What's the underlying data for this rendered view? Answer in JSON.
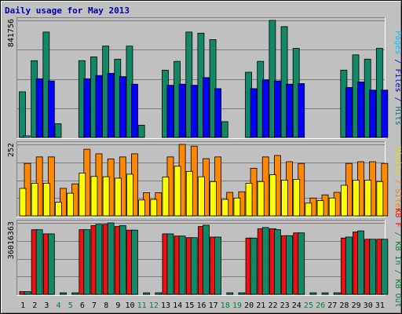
{
  "chart_data": {
    "type": "bar",
    "title": "Daily usage for May 2013",
    "x": [
      "1",
      "2",
      "3",
      "4",
      "5",
      "6",
      "7",
      "8",
      "9",
      "10",
      "11",
      "12",
      "13",
      "14",
      "15",
      "16",
      "17",
      "18",
      "19",
      "20",
      "21",
      "22",
      "23",
      "24",
      "25",
      "26",
      "27",
      "28",
      "29",
      "30",
      "31"
    ],
    "weekend_days": [
      "4",
      "5",
      "11",
      "12",
      "18",
      "19",
      "25",
      "26"
    ],
    "panels": [
      {
        "id": "top",
        "max_label": "841756",
        "right_label_parts": [
          {
            "text": "Pages",
            "color": "#00c0ff"
          },
          {
            "text": " / ",
            "color": "#0000c0"
          },
          {
            "text": "Files",
            "color": "#0000c0"
          },
          {
            "text": " / ",
            "color": "#0000c0"
          },
          {
            "text": "Hits",
            "color": "#008080"
          }
        ],
        "ylim": [
          0,
          841756
        ],
        "series": [
          {
            "name": "Hits",
            "color": "#118866",
            "values": [
              328000,
              552000,
              758000,
              98000,
              0,
              552000,
              579000,
              657000,
              563000,
              657000,
              88000,
              0,
              484000,
              547000,
              758000,
              750000,
              704000,
              113000,
              0,
              469000,
              547000,
              841756,
              797000,
              641000,
              0,
              0,
              0,
              484000,
              594000,
              563000,
              641000
            ]
          },
          {
            "name": "Files",
            "color": "#0000ff",
            "values": [
              0,
              422000,
              406000,
              0,
              0,
              422000,
              445000,
              461000,
              437000,
              383000,
              0,
              0,
              375000,
              383000,
              375000,
              430000,
              351000,
              0,
              0,
              351000,
              414000,
              406000,
              383000,
              387000,
              0,
              0,
              0,
              359000,
              399000,
              340000,
              340000
            ]
          },
          {
            "name": "Pages",
            "color": "#00ccff",
            "values": [
              6000,
              0,
              0,
              0,
              0,
              0,
              0,
              0,
              0,
              0,
              0,
              0,
              0,
              0,
              0,
              0,
              0,
              0,
              0,
              0,
              0,
              0,
              0,
              0,
              0,
              0,
              0,
              0,
              0,
              0,
              0
            ]
          }
        ]
      },
      {
        "id": "mid",
        "max_label": "252",
        "right_label_parts": [
          {
            "text": "Visits",
            "color": "#e0e000"
          },
          {
            "text": " / ",
            "color": "#ff8000"
          },
          {
            "text": "Sites",
            "color": "#ff8000"
          }
        ],
        "ylim": [
          0,
          252
        ],
        "series": [
          {
            "name": "Sites",
            "color": "#ff8800",
            "values": [
              185,
              208,
              208,
              97,
              113,
              235,
              219,
              201,
              208,
              219,
              82,
              82,
              208,
              252,
              246,
              202,
              208,
              83,
              85,
              168,
              208,
              213,
              191,
              185,
              63,
              74,
              83,
              185,
              191,
              191,
              185
            ]
          },
          {
            "name": "Visits",
            "color": "#ffff00",
            "values": [
              97,
              115,
              115,
              48,
              80,
              151,
              139,
              138,
              133,
              147,
              56,
              58,
              137,
              175,
              157,
              138,
              121,
              58,
              63,
              115,
              121,
              145,
              126,
              129,
              45,
              54,
              63,
              108,
              126,
              126,
              121
            ]
          }
        ]
      },
      {
        "id": "bot",
        "max_label": "36016363",
        "right_label_parts": [
          {
            "text": "KB F",
            "color": "#ff0000"
          },
          {
            "text": " / ",
            "color": "#008040"
          },
          {
            "text": "KB In",
            "color": "#008040"
          },
          {
            "text": " / ",
            "color": "#008040"
          },
          {
            "text": "KB Out",
            "color": "#008040"
          }
        ],
        "ylim": [
          0,
          36016363
        ],
        "series": [
          {
            "name": "KB F",
            "color": "#ee1111",
            "values": [
              1400000,
              32600000,
              30500000,
              0,
              0,
              32600000,
              34700000,
              35300000,
              34200000,
              32400000,
              0,
              0,
              30500000,
              29400000,
              28600000,
              34200000,
              28900000,
              0,
              0,
              28400000,
              33100000,
              33100000,
              29600000,
              31000000,
              0,
              0,
              0,
              28400000,
              31500000,
              27800000,
              27800000
            ]
          },
          {
            "name": "KB Out",
            "color": "#118866",
            "values": [
              1400000,
              32600000,
              30500000,
              800000,
              800000,
              32600000,
              35300000,
              36016363,
              34700000,
              32400000,
              800000,
              800000,
              30500000,
              29400000,
              28600000,
              34900000,
              28900000,
              800000,
              800000,
              28400000,
              33700000,
              32600000,
              29600000,
              31000000,
              800000,
              800000,
              800000,
              28900000,
              32000000,
              27800000,
              27800000
            ]
          }
        ]
      }
    ],
    "grid": true,
    "legend_placement": "right"
  }
}
